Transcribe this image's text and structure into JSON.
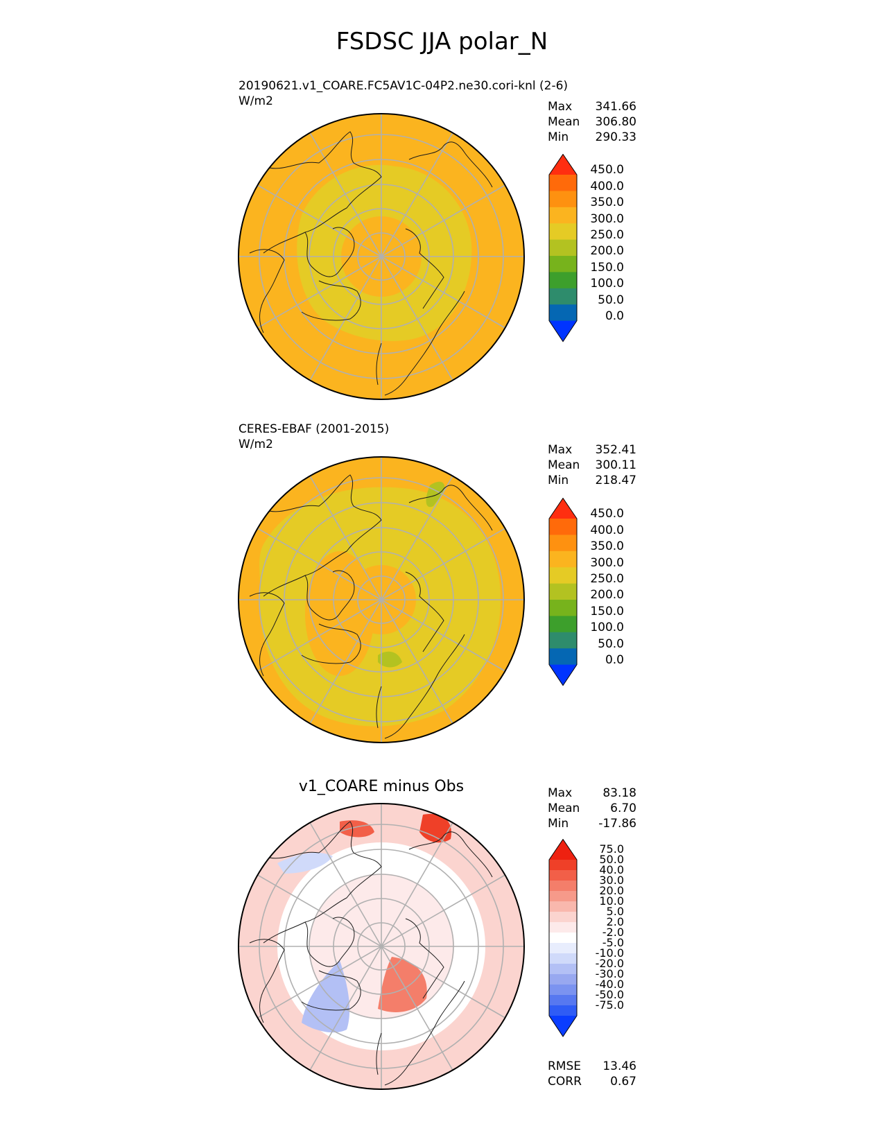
{
  "figure": {
    "title": "FSDSC JJA polar_N"
  },
  "panels": [
    {
      "id": "test",
      "title_line1": "20190621.v1_COARE.FC5AV1C-04P2.ne30.cori-knl (2-6)",
      "title_line2": "W/m2",
      "stats": [
        {
          "label": "Max",
          "value": "341.66"
        },
        {
          "label": "Mean",
          "value": "306.80"
        },
        {
          "label": "Min",
          "value": "290.33"
        }
      ],
      "colorbar_labels": [
        "450.0",
        "400.0",
        "350.0",
        "300.0",
        "250.0",
        "200.0",
        "150.0",
        "100.0",
        "50.0",
        "0.0"
      ]
    },
    {
      "id": "reference",
      "title_line1": "CERES-EBAF (2001-2015)",
      "title_line2": "W/m2",
      "stats": [
        {
          "label": "Max",
          "value": "352.41"
        },
        {
          "label": "Mean",
          "value": "300.11"
        },
        {
          "label": "Min",
          "value": "218.47"
        }
      ],
      "colorbar_labels": [
        "450.0",
        "400.0",
        "350.0",
        "300.0",
        "250.0",
        "200.0",
        "150.0",
        "100.0",
        "50.0",
        "0.0"
      ]
    },
    {
      "id": "difference",
      "title": "v1_COARE minus Obs",
      "stats": [
        {
          "label": "Max",
          "value": "83.18"
        },
        {
          "label": "Mean",
          "value": "6.70"
        },
        {
          "label": "Min",
          "value": "-17.86"
        }
      ],
      "colorbar_labels": [
        "75.0",
        "50.0",
        "40.0",
        "30.0",
        "20.0",
        "10.0",
        "5.0",
        "2.0",
        "-2.0",
        "-5.0",
        "-10.0",
        "-20.0",
        "-30.0",
        "-40.0",
        "-50.0",
        "-75.0"
      ],
      "metrics": [
        {
          "label": "RMSE",
          "value": "13.46"
        },
        {
          "label": "CORR",
          "value": "0.67"
        }
      ]
    }
  ],
  "colors": {
    "abs_scale": [
      "#0034ff",
      "#0567b3",
      "#2e8c6c",
      "#3d9f2c",
      "#77b31c",
      "#b3c221",
      "#e5cb25",
      "#fbb41f",
      "#fe9110",
      "#ff6a0a",
      "#ff2e10"
    ],
    "diff_scale": [
      "#0a3dff",
      "#2f5cf5",
      "#5778f0",
      "#7b93f0",
      "#98a8f0",
      "#b3c0f5",
      "#d0dafa",
      "#e8edfd",
      "#ffffff",
      "#fdeaea",
      "#fbd4cf",
      "#f9b8ad",
      "#f69a8a",
      "#f47e6a",
      "#f25f48",
      "#ef4028",
      "#ee2110"
    ]
  },
  "chart_data": [
    {
      "type": "heatmap",
      "projection": "north-polar-stereographic",
      "title": "20190621.v1_COARE.FC5AV1C-04P2.ne30.cori-knl (2-6)",
      "units": "W/m2",
      "levels": [
        0,
        50,
        100,
        150,
        200,
        250,
        300,
        350,
        400,
        450
      ],
      "stats": {
        "max": 341.66,
        "mean": 306.8,
        "min": 290.33
      }
    },
    {
      "type": "heatmap",
      "projection": "north-polar-stereographic",
      "title": "CERES-EBAF (2001-2015)",
      "units": "W/m2",
      "levels": [
        0,
        50,
        100,
        150,
        200,
        250,
        300,
        350,
        400,
        450
      ],
      "stats": {
        "max": 352.41,
        "mean": 300.11,
        "min": 218.47
      }
    },
    {
      "type": "heatmap",
      "projection": "north-polar-stereographic",
      "title": "v1_COARE minus Obs",
      "levels": [
        -75,
        -50,
        -40,
        -30,
        -20,
        -10,
        -5,
        -2,
        2,
        5,
        10,
        20,
        30,
        40,
        50,
        75
      ],
      "stats": {
        "max": 83.18,
        "mean": 6.7,
        "min": -17.86
      },
      "metrics": {
        "rmse": 13.46,
        "corr": 0.67
      }
    }
  ]
}
